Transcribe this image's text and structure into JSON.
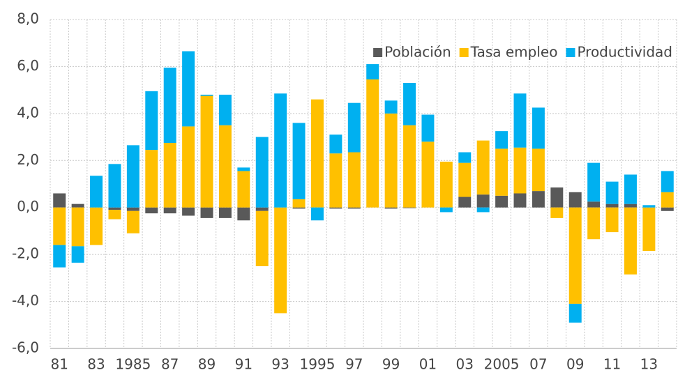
{
  "chart_data": {
    "type": "stacked_bar",
    "categories": [
      "81",
      null,
      "83",
      null,
      "1985",
      null,
      "87",
      null,
      "89",
      null,
      "91",
      null,
      "93",
      null,
      "1995",
      null,
      "97",
      null,
      "99",
      null,
      "01",
      null,
      "03",
      null,
      "2005",
      null,
      "07",
      null,
      "09",
      null,
      "11",
      null,
      "13",
      null
    ],
    "series": [
      {
        "name": "Población",
        "color": "#595959",
        "values": [
          0.6,
          0.15,
          0,
          -0.1,
          -0.15,
          -0.25,
          -0.25,
          -0.35,
          -0.45,
          -0.45,
          -0.55,
          -0.15,
          0,
          -0.05,
          0,
          -0.05,
          -0.05,
          0,
          -0.05,
          -0.03,
          0,
          0,
          0.45,
          0.55,
          0.5,
          0.6,
          0.7,
          0.85,
          0.65,
          0.25,
          0.15,
          0.15,
          0,
          -0.15
        ]
      },
      {
        "name": "Tasa empleo",
        "color": "#ffc000",
        "values": [
          -1.6,
          -1.65,
          -1.6,
          -0.4,
          -0.95,
          2.45,
          2.75,
          3.45,
          4.75,
          3.5,
          1.55,
          -2.35,
          -4.5,
          0.35,
          4.6,
          2.3,
          2.35,
          5.45,
          4.0,
          3.5,
          2.8,
          1.95,
          1.45,
          2.3,
          2.0,
          1.95,
          1.8,
          -0.45,
          -4.1,
          -1.35,
          -1.05,
          -2.85,
          -1.85,
          0.65
        ]
      },
      {
        "name": "Productividad",
        "color": "#00b0f0",
        "values": [
          -0.95,
          -0.7,
          1.35,
          1.85,
          2.65,
          2.5,
          3.2,
          3.2,
          0.05,
          1.3,
          0.15,
          3.0,
          4.85,
          3.25,
          -0.55,
          0.8,
          2.1,
          0.65,
          0.55,
          1.8,
          1.15,
          -0.2,
          0.45,
          -0.2,
          0.75,
          2.3,
          1.75,
          0,
          -0.8,
          1.65,
          0.95,
          1.25,
          0.1,
          0.9
        ]
      }
    ],
    "ylim": [
      -6,
      8
    ],
    "yticks": [
      {
        "value": -6,
        "label": "-6,0"
      },
      {
        "value": -4,
        "label": "-4,0"
      },
      {
        "value": -2,
        "label": "-2,0"
      },
      {
        "value": 0,
        "label": "0,0"
      },
      {
        "value": 2,
        "label": "2,0"
      },
      {
        "value": 4,
        "label": "4,0"
      },
      {
        "value": 6,
        "label": "6,0"
      },
      {
        "value": 8,
        "label": "8,0"
      }
    ],
    "grid": true,
    "legend": "upper right"
  }
}
